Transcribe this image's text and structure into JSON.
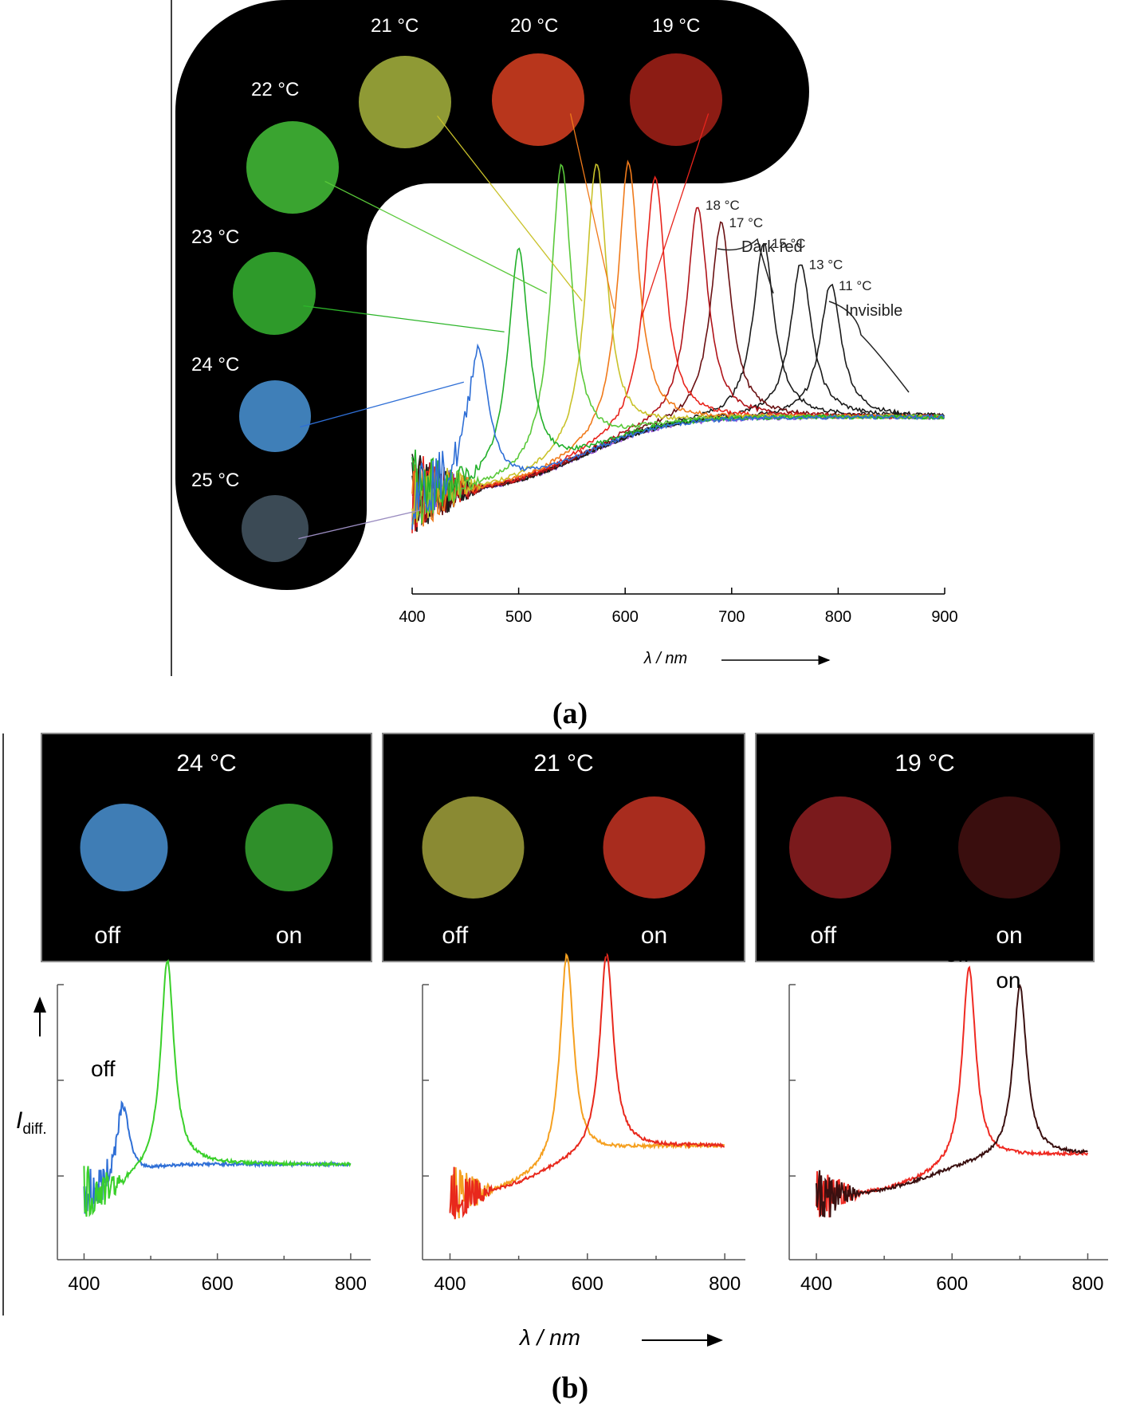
{
  "panel_labels": {
    "a": "(a)",
    "b": "(b)"
  },
  "panel_a": {
    "droplets": [
      {
        "label": "25 °C",
        "color": "#3b4a55"
      },
      {
        "label": "24 °C",
        "color": "#3f7fb8"
      },
      {
        "label": "23 °C",
        "color": "#2e9a2a"
      },
      {
        "label": "22 °C",
        "color": "#3aa430"
      },
      {
        "label": "21 °C",
        "color": "#8f9a35"
      },
      {
        "label": "20 °C",
        "color": "#b8361c"
      },
      {
        "label": "19 °C",
        "color": "#8c1c14"
      }
    ],
    "annotations": {
      "dark_red": "Dark red",
      "invisible": "Invisible"
    }
  },
  "panel_b": {
    "images": [
      {
        "title": "24 °C",
        "off_label": "off",
        "on_label": "on",
        "off_color": "#3f7db5",
        "on_color": "#2f8f2a"
      },
      {
        "title": "21 °C",
        "off_label": "off",
        "on_label": "on",
        "off_color": "#8a8a33",
        "on_color": "#a82c1e"
      },
      {
        "title": "19 °C",
        "off_label": "off",
        "on_label": "on",
        "off_color": "#7a1a1c",
        "on_color": "#3a0e0e"
      }
    ],
    "ylabel": "I",
    "ylabel_sub": "diff.",
    "xlabel": "λ / nm"
  },
  "chart_data": [
    {
      "type": "line",
      "title": "",
      "xlabel": "λ / nm",
      "ylabel": "",
      "xlim": [
        400,
        900
      ],
      "xticks": [
        400,
        500,
        600,
        700,
        800,
        900
      ],
      "ylim": [
        0,
        1
      ],
      "series": [
        {
          "name": "24 °C",
          "peak": 462,
          "height": 0.4,
          "color": "#2f6fd6"
        },
        {
          "name": "23 °C",
          "peak": 500,
          "height": 0.66,
          "color": "#22b02a"
        },
        {
          "name": "22 °C",
          "peak": 540,
          "height": 0.86,
          "color": "#5ac93a"
        },
        {
          "name": "21 °C",
          "peak": 573,
          "height": 0.82,
          "color": "#c9c22a"
        },
        {
          "name": "20 °C",
          "peak": 603,
          "height": 0.78,
          "color": "#f07a1a"
        },
        {
          "name": "19 °C",
          "peak": 628,
          "height": 0.72,
          "color": "#e8241c"
        },
        {
          "name": "18 °C",
          "peak": 668,
          "height": 0.61,
          "color": "#b0141a"
        },
        {
          "name": "17 °C",
          "peak": 690,
          "height": 0.56,
          "color": "#6a1012"
        },
        {
          "name": "15 °C",
          "peak": 730,
          "height": 0.5,
          "color": "#1a1a1a"
        },
        {
          "name": "13 °C",
          "peak": 765,
          "height": 0.44,
          "color": "#1a1a1a"
        },
        {
          "name": "11 °C",
          "peak": 793,
          "height": 0.38,
          "color": "#1a1a1a"
        },
        {
          "name": "25 °C",
          "peak": null,
          "height": 0,
          "color": "#9a52d8"
        }
      ]
    },
    {
      "type": "line",
      "title": "24 °C",
      "xlabel": "",
      "ylabel": "I_diff.",
      "xlim": [
        360,
        830
      ],
      "xticks": [
        400,
        600,
        800
      ],
      "ylim": [
        0,
        1
      ],
      "series": [
        {
          "name": "off",
          "peak": 458,
          "height": 0.4,
          "color": "#2f6fd6"
        },
        {
          "name": "on",
          "peak": 525,
          "height": 0.88,
          "color": "#3ad02a"
        }
      ]
    },
    {
      "type": "line",
      "title": "21 °C",
      "xlabel": "λ / nm",
      "ylabel": "",
      "xlim": [
        360,
        830
      ],
      "xticks": [
        400,
        600,
        800
      ],
      "ylim": [
        0,
        1
      ],
      "series": [
        {
          "name": "off",
          "peak": 570,
          "height": 0.92,
          "color": "#f5a020"
        },
        {
          "name": "on",
          "peak": 628,
          "height": 0.88,
          "color": "#e8281c"
        }
      ]
    },
    {
      "type": "line",
      "title": "19 °C",
      "xlabel": "",
      "ylabel": "",
      "xlim": [
        360,
        830
      ],
      "xticks": [
        400,
        600,
        800
      ],
      "ylim": [
        0,
        1
      ],
      "series": [
        {
          "name": "off",
          "peak": 625,
          "height": 0.86,
          "color": "#ef2a22"
        },
        {
          "name": "on",
          "peak": 700,
          "height": 0.76,
          "color": "#3a1010"
        }
      ]
    }
  ]
}
